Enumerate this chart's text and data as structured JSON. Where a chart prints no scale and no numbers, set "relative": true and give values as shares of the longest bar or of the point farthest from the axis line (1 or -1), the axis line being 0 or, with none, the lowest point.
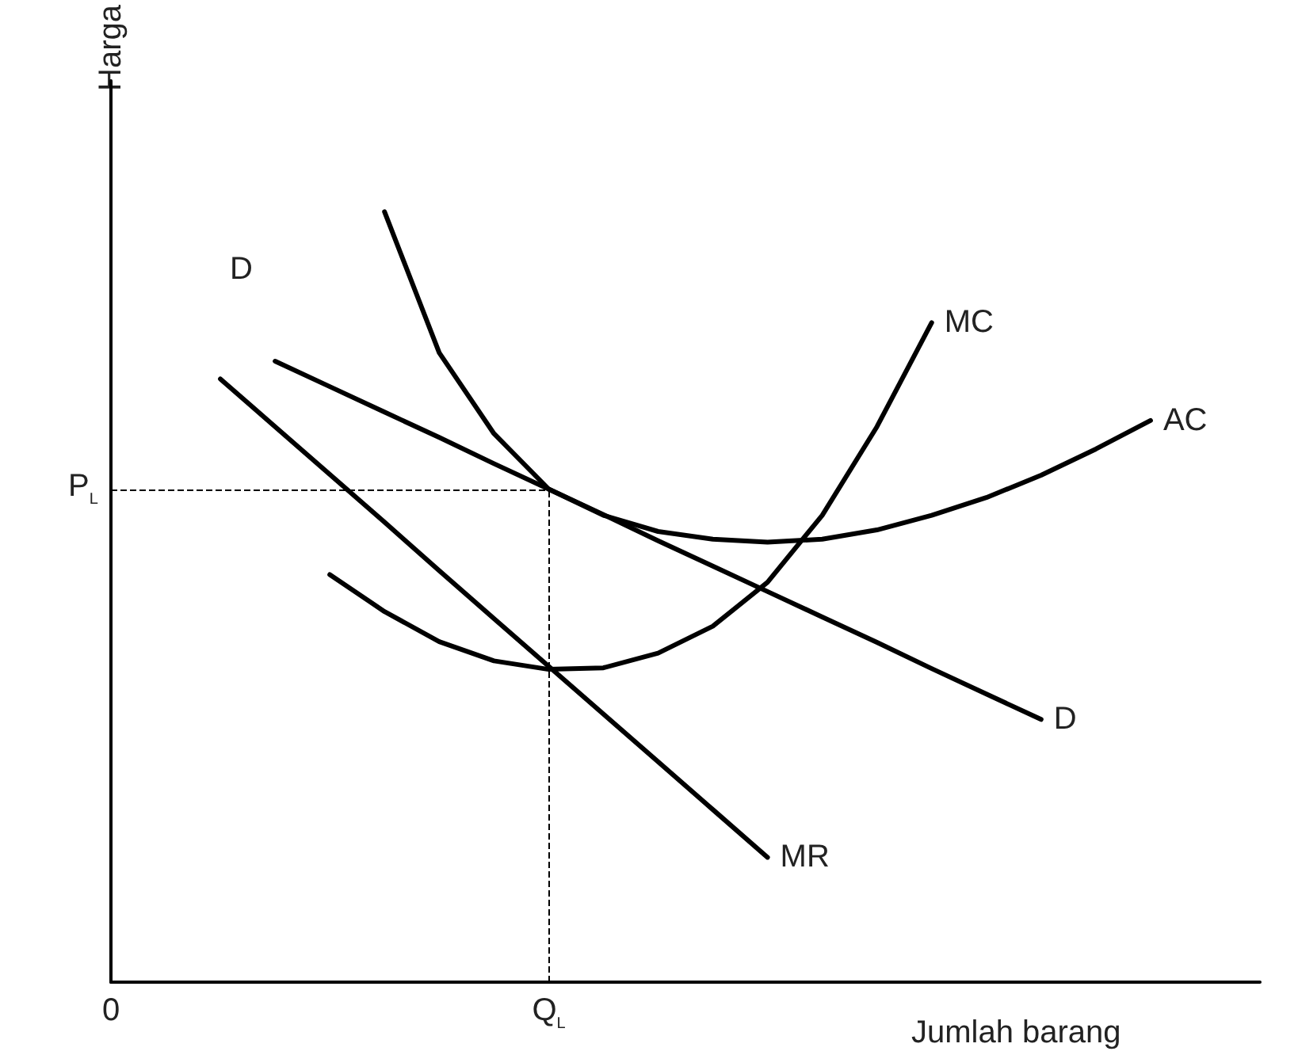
{
  "chart_data": {
    "type": "line",
    "relative": true,
    "xlabel": "Jumlah barang",
    "ylabel": "Harga",
    "categories": [
      "0",
      null,
      null,
      null,
      null,
      null,
      null,
      null,
      "Q$_{L}$",
      null,
      null,
      null,
      null,
      null,
      null,
      null,
      null,
      null,
      null,
      null,
      null,
      null
    ],
    "series": [
      {
        "name": "MC",
        "color": "#000000",
        "values": [
          null,
          null,
          null,
          null,
          0.529,
          0.481,
          0.442,
          0.417,
          0.406,
          0.408,
          0.427,
          0.462,
          0.519,
          0.606,
          0.721,
          0.856,
          null,
          null,
          null,
          null,
          null,
          null
        ]
      },
      {
        "name": "AC",
        "color": "#000000",
        "values": [
          null,
          null,
          null,
          null,
          null,
          1.0,
          0.817,
          0.712,
          0.64,
          0.606,
          0.585,
          0.575,
          0.571,
          0.575,
          0.587,
          0.606,
          0.629,
          0.658,
          0.692,
          0.729,
          null,
          null
        ]
      },
      {
        "name": "D",
        "color": "#000000",
        "values": [
          null,
          null,
          null,
          0.806,
          0.773,
          0.74,
          0.707,
          0.673,
          0.64,
          0.607,
          0.573,
          0.54,
          0.507,
          0.474,
          0.441,
          0.407,
          0.374,
          0.341,
          null,
          null,
          null,
          null
        ]
      },
      {
        "name": "MR",
        "color": "#000000",
        "values": [
          null,
          null,
          0.783,
          0.721,
          0.659,
          0.597,
          0.534,
          0.472,
          0.41,
          0.348,
          0.286,
          0.224,
          0.162,
          null,
          null,
          null,
          null,
          null,
          null,
          null,
          null,
          null
        ]
      }
    ],
    "annotations": [
      "D"
    ],
    "ref_lines": [
      {
        "axis": "y",
        "value": 0.64,
        "label": "P$_{L}$",
        "line_style": "dashed",
        "color": "#000000"
      },
      {
        "axis": "x",
        "value": "Q$_{L}$",
        "line_style": "dashed",
        "color": "#000000"
      }
    ],
    "grid": false,
    "legend": false,
    "marker": "none",
    "line_style": "solid"
  }
}
